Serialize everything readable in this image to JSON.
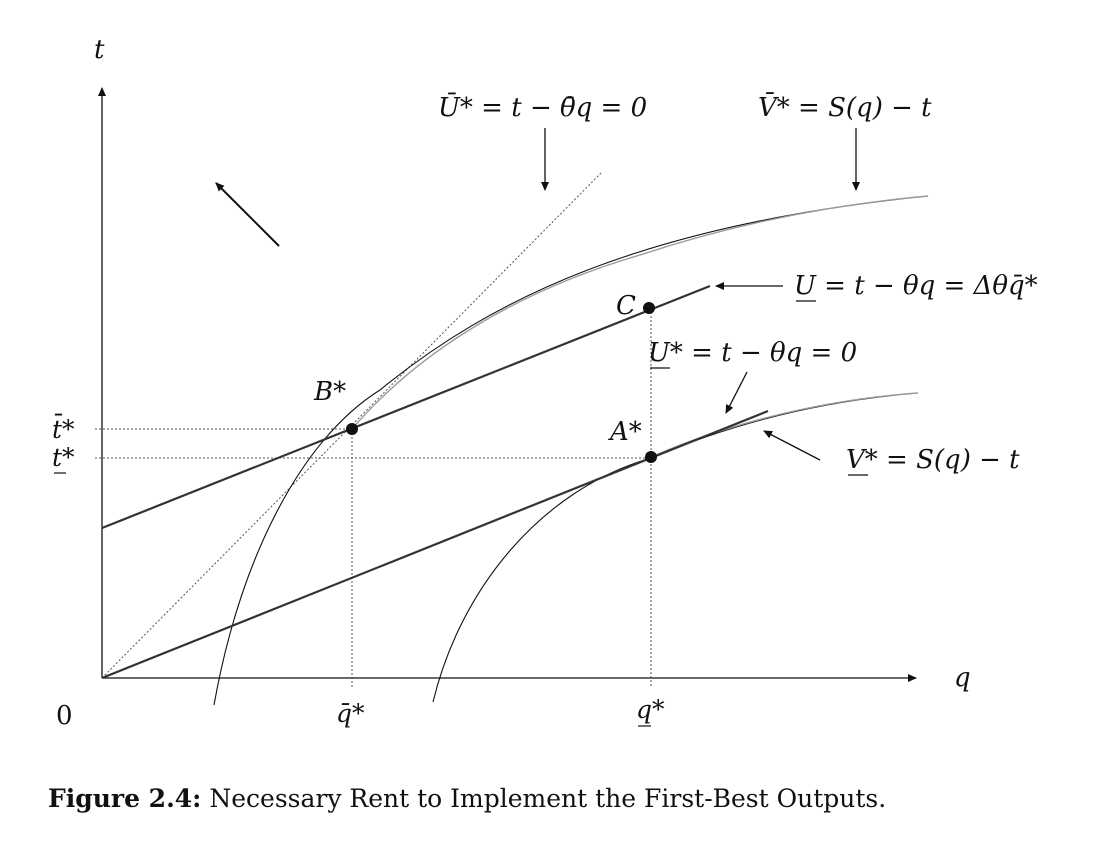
{
  "axes": {
    "y_label": "t",
    "x_label": "q",
    "origin_label": "0",
    "y_ticks": [
      "t̄*",
      "t*"
    ],
    "x_ticks": [
      "q̄*",
      "q*"
    ]
  },
  "curve_labels": {
    "u_bar_star": {
      "lhs": "Ū*",
      "rhs": " = t − θ̄q = 0"
    },
    "v_bar_star": {
      "lhs": "V̄*",
      "rhs": " = S(q) − t"
    },
    "u_under": {
      "lhs": "U",
      "rhs": " = t − θq = Δθq̄*"
    },
    "u_under_star": {
      "lhs": "U*",
      "rhs": " = t − θq = 0"
    },
    "v_under_star": {
      "lhs": "V*",
      "rhs": " = S(q) − t"
    }
  },
  "points": {
    "b_star": "B*",
    "a_star": "A*",
    "c": "C"
  },
  "caption": {
    "label": "Figure 2.4:",
    "text": " Necessary Rent to Implement the First-Best Outputs."
  },
  "colors": {
    "ink": "#111111",
    "light_curve": "#9a9a9a",
    "dotted": "#555555"
  }
}
